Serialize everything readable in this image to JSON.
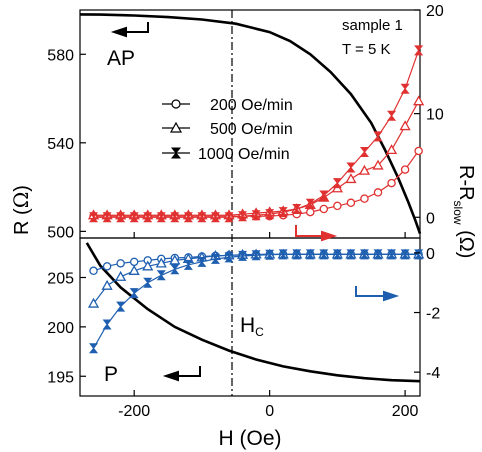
{
  "chart_data": [
    {
      "panel": "top",
      "type": "line",
      "x_label": "H (Oe)",
      "x_ticks": [
        -200,
        0,
        200
      ],
      "xlim": [
        -280,
        222
      ],
      "left_axis": {
        "label_main": "R (",
        "label_unit": "Ω",
        "label_close": ")",
        "ylim": [
          497,
          600
        ],
        "ticks": [
          500,
          540,
          580
        ]
      },
      "right_axis": {
        "label_main": "R-R",
        "label_sub": "slow",
        "label_unit": " (Ω)",
        "ylim": [
          -2,
          20
        ],
        "ticks": [
          0,
          10,
          20
        ]
      },
      "annotations": {
        "sample": "sample 1",
        "temperature": "T = 5 K",
        "state_label": "AP"
      },
      "legend": [
        {
          "marker": "circle",
          "text": "200 Oe/min"
        },
        {
          "marker": "triangle",
          "text": "500 Oe/min"
        },
        {
          "marker": "hourglass",
          "text": "1000 Oe/min"
        }
      ],
      "series": [
        {
          "axis": "left",
          "color": "#000000",
          "x": [
            -280,
            -250,
            -200,
            -150,
            -100,
            -50,
            0,
            30,
            60,
            90,
            120,
            150,
            170,
            190,
            205,
            215,
            222
          ],
          "y": [
            598,
            597.9,
            597.5,
            596.8,
            595.7,
            593.8,
            590,
            586,
            580,
            572,
            562,
            549,
            537,
            524,
            513,
            505,
            499
          ]
        },
        {
          "axis": "right",
          "marker": "circle",
          "color": "#e03030",
          "x": [
            -260,
            -240,
            -220,
            -200,
            -180,
            -160,
            -140,
            -120,
            -100,
            -80,
            -60,
            -40,
            -20,
            0,
            20,
            40,
            60,
            80,
            100,
            120,
            140,
            160,
            180,
            200,
            220
          ],
          "y": [
            0.1,
            0.1,
            0.1,
            0.1,
            0.1,
            0.1,
            0.1,
            0.1,
            0.1,
            0.1,
            0.1,
            0.1,
            0.1,
            0.1,
            0.2,
            0.3,
            0.5,
            0.8,
            1.1,
            1.4,
            1.8,
            2.4,
            3.3,
            4.6,
            6.4
          ]
        },
        {
          "axis": "right",
          "marker": "triangle",
          "color": "#e03030",
          "x": [
            -260,
            -240,
            -220,
            -200,
            -180,
            -160,
            -140,
            -120,
            -100,
            -80,
            -60,
            -40,
            -20,
            0,
            20,
            40,
            60,
            80,
            100,
            120,
            140,
            160,
            180,
            200,
            220
          ],
          "y": [
            0.2,
            0.2,
            0.2,
            0.2,
            0.2,
            0.2,
            0.2,
            0.2,
            0.2,
            0.2,
            0.2,
            0.3,
            0.4,
            0.5,
            0.6,
            0.8,
            1.2,
            1.9,
            2.8,
            3.7,
            4.5,
            5.0,
            6.5,
            8.8,
            11.2
          ]
        },
        {
          "axis": "right",
          "marker": "hourglass",
          "color": "#e03030",
          "x": [
            -260,
            -240,
            -220,
            -200,
            -180,
            -160,
            -140,
            -120,
            -100,
            -80,
            -60,
            -40,
            -20,
            0,
            20,
            40,
            60,
            80,
            100,
            120,
            140,
            160,
            180,
            200,
            220
          ],
          "y": [
            0.0,
            0.0,
            0.0,
            0.0,
            0.0,
            0.0,
            0.0,
            0.0,
            0.0,
            0.0,
            0.0,
            0.1,
            0.2,
            0.3,
            0.5,
            0.8,
            1.3,
            2.1,
            3.3,
            4.8,
            6.3,
            7.8,
            9.8,
            12.4,
            16.1
          ]
        }
      ]
    },
    {
      "panel": "bottom",
      "type": "line",
      "x_label": "H (Oe)",
      "x_ticks": [
        -200,
        0,
        200
      ],
      "xlim": [
        -280,
        222
      ],
      "left_axis": {
        "ylim": [
          193,
          209
        ],
        "ticks": [
          195,
          200,
          205
        ]
      },
      "right_axis": {
        "ylim": [
          -4.8,
          0.5
        ],
        "ticks": [
          0,
          -2,
          -4
        ]
      },
      "annotations": {
        "state_label": "P",
        "hc_main": "H",
        "hc_sub": "C"
      },
      "series": [
        {
          "axis": "left",
          "color": "#000000",
          "x": [
            -270,
            -250,
            -220,
            -180,
            -140,
            -100,
            -60,
            -20,
            20,
            60,
            100,
            140,
            180,
            222
          ],
          "y": [
            208.5,
            206.2,
            204.0,
            201.8,
            200.0,
            198.7,
            197.6,
            196.7,
            196.0,
            195.5,
            195.1,
            194.8,
            194.6,
            194.5
          ]
        },
        {
          "axis": "right",
          "marker": "circle",
          "color": "#1f5fb0",
          "x": [
            -260,
            -240,
            -220,
            -200,
            -180,
            -160,
            -140,
            -120,
            -100,
            -80,
            -60,
            -40,
            -20,
            0,
            20,
            40,
            60,
            80,
            100,
            120,
            140,
            160,
            180,
            200,
            220
          ],
          "y": [
            -0.6,
            -0.45,
            -0.35,
            -0.3,
            -0.25,
            -0.2,
            -0.17,
            -0.15,
            -0.12,
            -0.1,
            -0.08,
            -0.07,
            -0.06,
            -0.05,
            -0.05,
            -0.05,
            -0.05,
            -0.05,
            -0.05,
            -0.05,
            -0.05,
            -0.05,
            -0.05,
            -0.05,
            -0.05
          ]
        },
        {
          "axis": "right",
          "marker": "triangle",
          "color": "#1f5fb0",
          "x": [
            -260,
            -240,
            -220,
            -200,
            -180,
            -160,
            -140,
            -120,
            -100,
            -80,
            -60,
            -40,
            -20,
            0,
            20,
            40,
            60,
            80,
            100,
            120,
            140,
            160,
            180,
            200,
            220
          ],
          "y": [
            -1.7,
            -1.1,
            -0.8,
            -0.6,
            -0.45,
            -0.35,
            -0.25,
            -0.2,
            -0.15,
            -0.1,
            -0.08,
            -0.06,
            -0.05,
            -0.05,
            -0.05,
            -0.05,
            -0.05,
            -0.05,
            -0.05,
            -0.05,
            -0.05,
            -0.05,
            -0.05,
            -0.05,
            -0.05
          ]
        },
        {
          "axis": "right",
          "marker": "hourglass",
          "color": "#1f5fb0",
          "x": [
            -260,
            -240,
            -220,
            -200,
            -180,
            -160,
            -140,
            -120,
            -100,
            -80,
            -60,
            -40,
            -20,
            0,
            20,
            40,
            60,
            80,
            100,
            120,
            140,
            160,
            180,
            200,
            220
          ],
          "y": [
            -3.2,
            -2.4,
            -1.8,
            -1.35,
            -1.0,
            -0.75,
            -0.55,
            -0.4,
            -0.3,
            -0.2,
            -0.15,
            -0.1,
            -0.08,
            -0.06,
            -0.05,
            -0.05,
            -0.05,
            -0.05,
            -0.05,
            -0.05,
            -0.05,
            -0.05,
            -0.05,
            -0.05,
            -0.05
          ]
        }
      ]
    }
  ]
}
